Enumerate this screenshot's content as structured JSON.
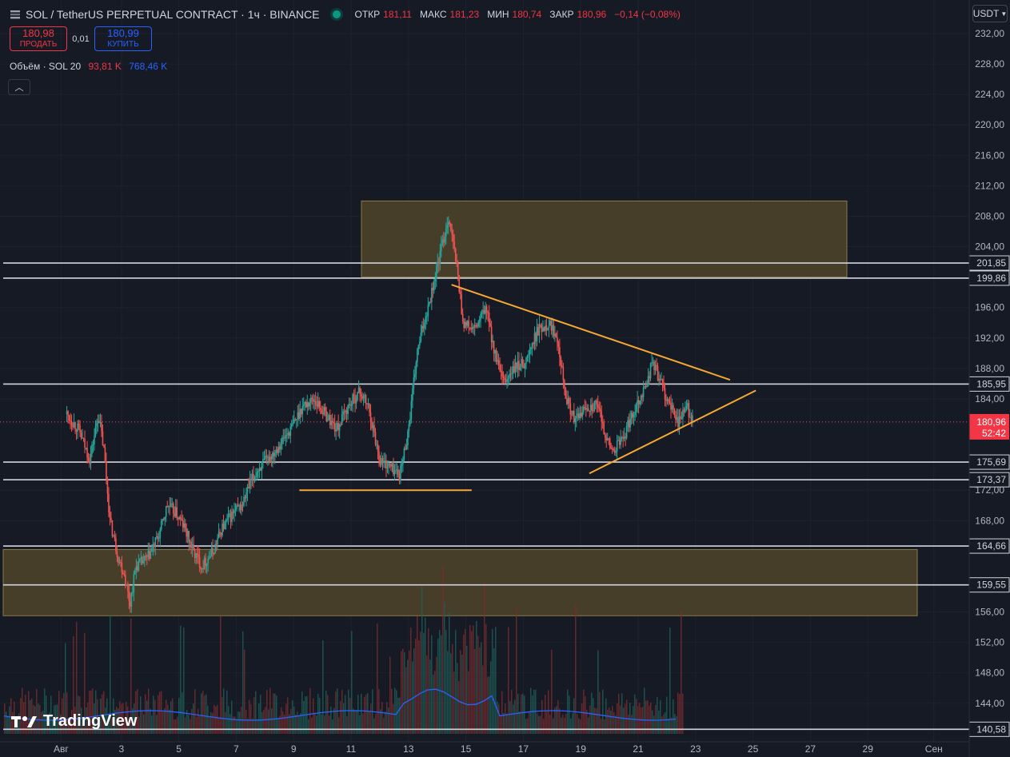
{
  "header": {
    "title": "SOL / TetherUS PERPETUAL CONTRACT · 1ч · BINANCE",
    "ohlc": [
      {
        "label": "ОТКР",
        "value": "181,11"
      },
      {
        "label": "МАКС",
        "value": "181,23"
      },
      {
        "label": "МИН",
        "value": "180,74"
      },
      {
        "label": "ЗАКР",
        "value": "180,96"
      },
      {
        "label": "",
        "value": "−0,14 (−0,08%)"
      }
    ]
  },
  "trade": {
    "sell_price": "180,98",
    "sell_label": "ПРОДАТЬ",
    "spread": "0,01",
    "buy_price": "180,99",
    "buy_label": "КУПИТЬ"
  },
  "volume_legend": {
    "label": "Объём · SOL 20",
    "value1": "93,81 K",
    "value2": "768,46 K"
  },
  "currency": "USDT",
  "logo": "TradingView",
  "colors": {
    "bg": "#161a25",
    "up": "#26a69a",
    "down": "#ef5350",
    "zone": "#4a4029",
    "trend": "#f7a832",
    "volma": "#2962ff"
  },
  "chart_data": {
    "type": "candlestick",
    "timeframe": "1ч",
    "y_axis": {
      "range": [
        139,
        234
      ],
      "ticks": [
        "232,00",
        "228,00",
        "224,00",
        "220,00",
        "216,00",
        "212,00",
        "208,00",
        "204,00",
        "196,00",
        "192,00",
        "188,00",
        "184,00",
        "172,00",
        "168,00",
        "156,00",
        "152,00",
        "148,00",
        "144,00"
      ]
    },
    "x_axis": {
      "labels": [
        "Авг",
        "3",
        "5",
        "7",
        "9",
        "11",
        "13",
        "15",
        "17",
        "19",
        "21",
        "23",
        "25",
        "27",
        "29",
        "Сен"
      ]
    },
    "current_price": {
      "value": "180,96",
      "countdown": "52:42"
    },
    "horizontal_levels": [
      201.85,
      199.86,
      185.95,
      175.69,
      173.37,
      164.66,
      159.55,
      140.58
    ],
    "level_labels": [
      "201,85",
      "199,86",
      "185,95",
      "175,69",
      "173,37",
      "164,66",
      "159,55",
      "140,58"
    ],
    "zones": [
      {
        "x_from": "12",
        "x_to": "28",
        "price_low": 200.0,
        "price_high": 210.0
      },
      {
        "x_from": "1",
        "x_to": "31",
        "price_low": 155.5,
        "price_high": 164.2
      }
    ],
    "trendlines": [
      {
        "from": {
          "day": 14.5,
          "price": 199.0
        },
        "to": {
          "day": 24.2,
          "price": 186.5
        }
      },
      {
        "from": {
          "day": 19.3,
          "price": 174.2
        },
        "to": {
          "day": 25.1,
          "price": 185.1
        }
      },
      {
        "from": {
          "day": 9.2,
          "price": 172.0
        },
        "to": {
          "day": 15.2,
          "price": 172.0
        }
      }
    ],
    "price_path": [
      [
        1.1,
        182
      ],
      [
        1.5,
        180
      ],
      [
        1.9,
        176
      ],
      [
        2.2,
        182
      ],
      [
        2.4,
        177
      ],
      [
        2.6,
        168
      ],
      [
        2.9,
        163
      ],
      [
        3.1,
        161
      ],
      [
        3.3,
        157
      ],
      [
        3.5,
        162
      ],
      [
        3.9,
        163
      ],
      [
        4.3,
        166
      ],
      [
        4.6,
        170
      ],
      [
        4.9,
        169
      ],
      [
        5.2,
        167
      ],
      [
        5.5,
        164
      ],
      [
        5.8,
        162
      ],
      [
        6.2,
        164
      ],
      [
        6.5,
        167
      ],
      [
        6.9,
        169
      ],
      [
        7.2,
        170
      ],
      [
        7.5,
        173
      ],
      [
        7.8,
        175
      ],
      [
        8.1,
        176
      ],
      [
        8.5,
        178
      ],
      [
        8.9,
        180
      ],
      [
        9.3,
        183
      ],
      [
        9.7,
        184
      ],
      [
        10.1,
        182
      ],
      [
        10.5,
        180
      ],
      [
        10.9,
        183
      ],
      [
        11.3,
        185
      ],
      [
        11.6,
        183
      ],
      [
        12.0,
        176
      ],
      [
        12.4,
        175
      ],
      [
        12.7,
        174
      ],
      [
        13.0,
        180
      ],
      [
        13.3,
        190
      ],
      [
        13.6,
        195
      ],
      [
        13.8,
        198
      ],
      [
        14.1,
        203
      ],
      [
        14.4,
        208
      ],
      [
        14.7,
        201
      ],
      [
        14.9,
        194
      ],
      [
        15.3,
        193
      ],
      [
        15.7,
        196
      ],
      [
        16.0,
        190
      ],
      [
        16.3,
        186
      ],
      [
        16.7,
        188
      ],
      [
        17.1,
        189
      ],
      [
        17.5,
        193
      ],
      [
        17.9,
        194
      ],
      [
        18.2,
        192
      ],
      [
        18.5,
        184
      ],
      [
        18.8,
        181
      ],
      [
        19.2,
        183
      ],
      [
        19.6,
        183
      ],
      [
        19.8,
        180
      ],
      [
        20.1,
        177
      ],
      [
        20.5,
        179
      ],
      [
        20.9,
        183
      ],
      [
        21.3,
        186
      ],
      [
        21.5,
        189
      ],
      [
        21.8,
        186
      ],
      [
        22.1,
        183
      ],
      [
        22.4,
        181
      ],
      [
        22.7,
        183
      ],
      [
        22.9,
        181
      ]
    ]
  }
}
